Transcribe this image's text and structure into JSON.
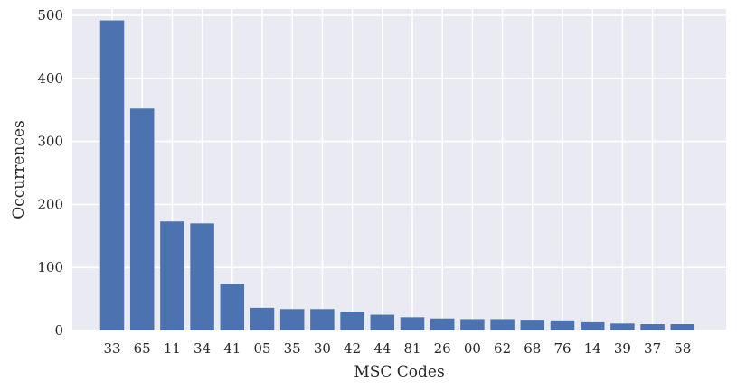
{
  "chart_data": {
    "type": "bar",
    "title": "",
    "xlabel": "MSC Codes",
    "ylabel": "Occurrences",
    "categories": [
      "33",
      "65",
      "11",
      "34",
      "41",
      "05",
      "35",
      "30",
      "42",
      "44",
      "81",
      "26",
      "00",
      "62",
      "68",
      "76",
      "14",
      "39",
      "37",
      "58"
    ],
    "values": [
      492,
      352,
      173,
      170,
      74,
      36,
      34,
      34,
      30,
      25,
      21,
      19,
      18,
      18,
      17,
      16,
      13,
      11,
      10,
      10
    ],
    "ylim": [
      0,
      510
    ],
    "yticks": [
      0,
      100,
      200,
      300,
      400,
      500
    ],
    "grid": true,
    "bar_color": "#4c72b0",
    "background_color": "#eaeaf2",
    "grid_color": "#ffffff"
  }
}
